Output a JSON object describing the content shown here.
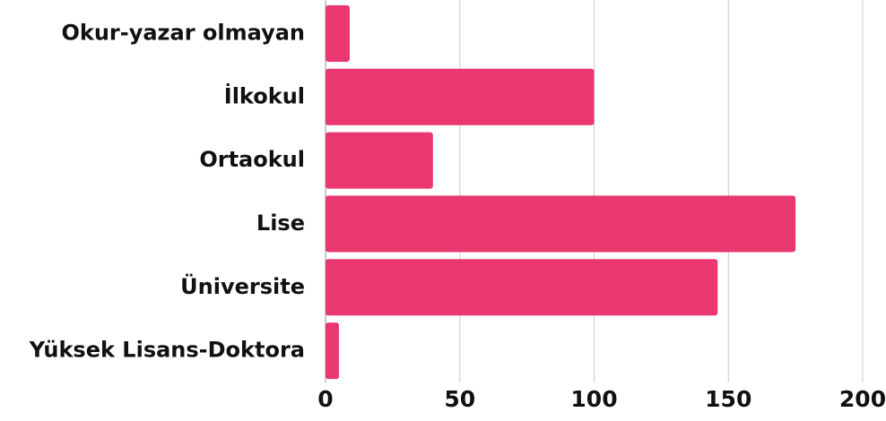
{
  "chart_data": {
    "type": "bar",
    "orientation": "horizontal",
    "categories": [
      "Okur-yazar olmayan",
      "İlkokul",
      "Ortaokul",
      "Lise",
      "Üniversite",
      "Yüksek Lisans-Doktora"
    ],
    "values": [
      9,
      100,
      40,
      175,
      146,
      5
    ],
    "color": "#e8386f",
    "xlim": [
      0,
      200
    ],
    "xticks": [
      0,
      50,
      100,
      150,
      200
    ],
    "grid": true
  }
}
